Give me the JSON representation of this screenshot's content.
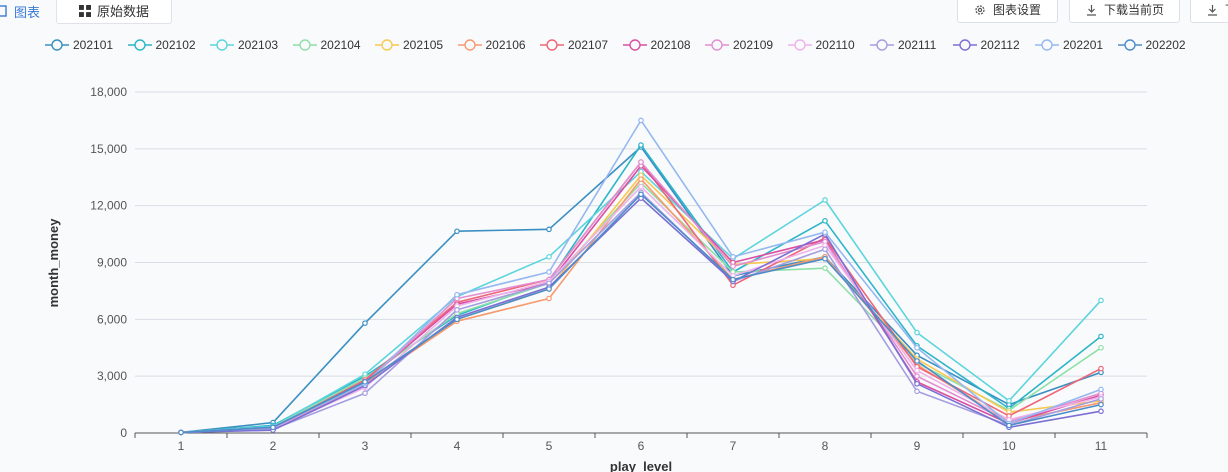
{
  "toolbar": {
    "tab_chart": "图表",
    "tab_raw": "原始数据",
    "settings": "图表设置",
    "download": "下载当前页",
    "more": "下"
  },
  "chart_data": {
    "type": "line",
    "xlabel": "play_level",
    "ylabel": "month_money",
    "x": [
      1,
      2,
      3,
      4,
      5,
      6,
      7,
      8,
      9,
      10,
      11
    ],
    "ylim": [
      0,
      18000
    ],
    "yticks": [
      0,
      3000,
      6000,
      9000,
      12000,
      15000,
      18000
    ],
    "ytick_labels": [
      "0",
      "3,000",
      "6,000",
      "9,000",
      "12,000",
      "15,000",
      "18,000"
    ],
    "grid": true,
    "legend_position": "top",
    "series": [
      {
        "name": "202101",
        "color": "#3a8fc2",
        "values": [
          30,
          550,
          5800,
          10650,
          10750,
          15100,
          8300,
          9300,
          4100,
          1500,
          3200
        ]
      },
      {
        "name": "202102",
        "color": "#2cb5c8",
        "values": [
          30,
          400,
          3000,
          6200,
          8000,
          15200,
          8500,
          11200,
          4600,
          1300,
          5100
        ]
      },
      {
        "name": "202103",
        "color": "#5dd5dc",
        "values": [
          30,
          350,
          3100,
          7200,
          9300,
          13800,
          9200,
          12300,
          5300,
          1700,
          7000
        ]
      },
      {
        "name": "202104",
        "color": "#8fe0a8",
        "values": [
          30,
          300,
          2900,
          6300,
          7900,
          13200,
          8500,
          8700,
          3700,
          1200,
          4500
        ]
      },
      {
        "name": "202105",
        "color": "#f9c851",
        "values": [
          30,
          250,
          2700,
          6000,
          7600,
          13600,
          8900,
          9200,
          3900,
          1100,
          1700
        ]
      },
      {
        "name": "202106",
        "color": "#f79a6e",
        "values": [
          30,
          200,
          2600,
          5900,
          7100,
          13400,
          8100,
          9300,
          3600,
          600,
          1600
        ]
      },
      {
        "name": "202107",
        "color": "#ee6677",
        "values": [
          30,
          250,
          2800,
          6900,
          8100,
          14300,
          7800,
          10300,
          3500,
          900,
          3400
        ]
      },
      {
        "name": "202108",
        "color": "#d94fa1",
        "values": [
          30,
          300,
          2700,
          6800,
          7900,
          14100,
          9000,
          10200,
          2700,
          500,
          2000
        ]
      },
      {
        "name": "202109",
        "color": "#e38ed0",
        "values": [
          30,
          250,
          2600,
          7100,
          8100,
          14300,
          8800,
          10100,
          3000,
          600,
          2100
        ]
      },
      {
        "name": "202110",
        "color": "#efb2ea",
        "values": [
          30,
          200,
          2400,
          6700,
          8000,
          13000,
          8300,
          9900,
          3300,
          700,
          1900
        ]
      },
      {
        "name": "202111",
        "color": "#a49ee0",
        "values": [
          30,
          200,
          2100,
          6500,
          7900,
          12700,
          8000,
          9700,
          2200,
          400,
          1800
        ]
      },
      {
        "name": "202112",
        "color": "#7a6fd3",
        "values": [
          30,
          150,
          2500,
          6100,
          7700,
          12400,
          8000,
          10500,
          2600,
          300,
          1150
        ]
      },
      {
        "name": "202201",
        "color": "#95b8f0",
        "values": [
          30,
          300,
          2600,
          7300,
          8500,
          16500,
          9300,
          10600,
          4500,
          500,
          2300
        ]
      },
      {
        "name": "202202",
        "color": "#4c8dc9",
        "values": [
          30,
          300,
          2700,
          6000,
          7600,
          12600,
          8100,
          9200,
          3800,
          400,
          1500
        ]
      }
    ]
  }
}
